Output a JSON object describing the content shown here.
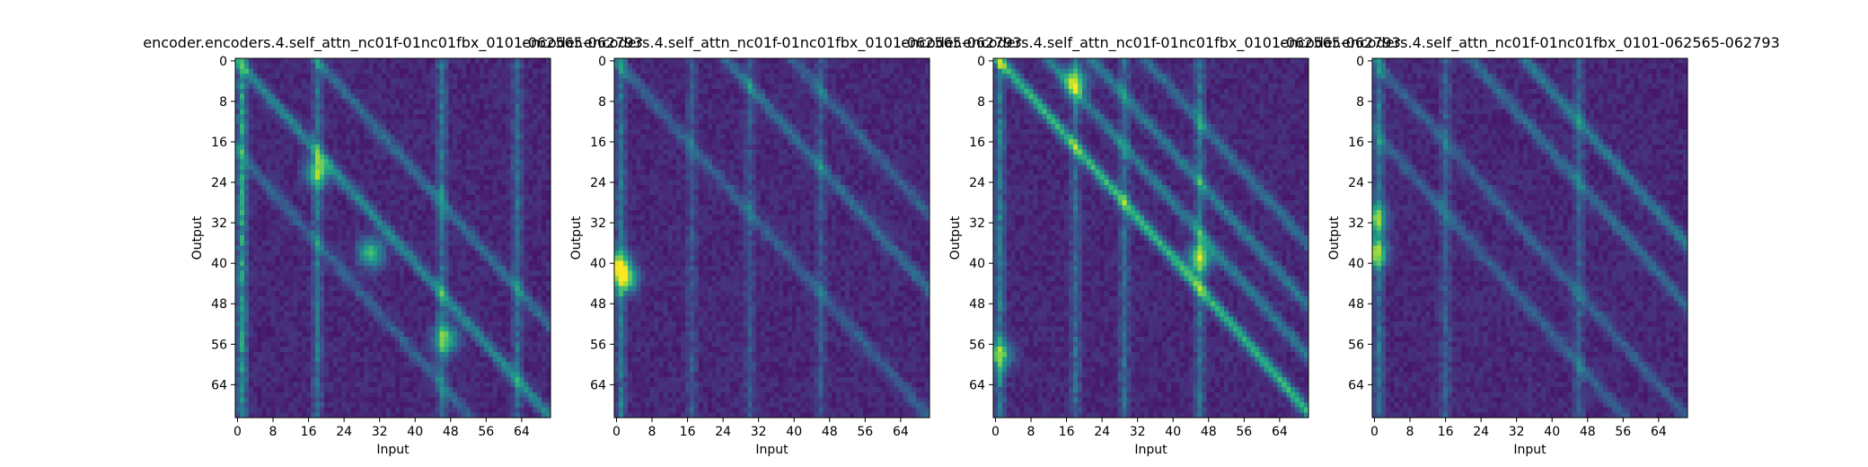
{
  "chart_data": [
    {
      "type": "heatmap",
      "title": "encoder.encoders.4.self_attn_nc01f-01nc01fbx_0101-062565-062793",
      "xlabel": "Input",
      "ylabel": "Output",
      "xticks": [
        0,
        8,
        16,
        24,
        32,
        40,
        48,
        56,
        64
      ],
      "yticks": [
        0,
        8,
        16,
        24,
        32,
        40,
        48,
        56,
        64
      ],
      "size": 71,
      "colormap": "viridis",
      "features": [
        {
          "kind": "diagonal",
          "offset": 0,
          "strength": 0.35
        },
        {
          "kind": "diagonal",
          "offset": 18,
          "strength": 0.25
        },
        {
          "kind": "diagonal",
          "offset": -18,
          "strength": 0.2
        },
        {
          "kind": "column",
          "index": 1,
          "strength": 0.55
        },
        {
          "kind": "column",
          "index": 18,
          "strength": 0.35
        },
        {
          "kind": "column",
          "index": 46,
          "strength": 0.35
        },
        {
          "kind": "column",
          "index": 63,
          "strength": 0.3
        },
        {
          "kind": "spot",
          "row": 38,
          "col": 30,
          "strength": 0.6
        },
        {
          "kind": "spot",
          "row": 55,
          "col": 47,
          "strength": 0.55
        },
        {
          "kind": "spot",
          "row": 22,
          "col": 18,
          "strength": 0.55
        }
      ]
    },
    {
      "type": "heatmap",
      "title": "encoder.encoders.4.self_attn_nc01f-01nc01fbx_0101-062565-062793",
      "xlabel": "Input",
      "ylabel": "Output",
      "xticks": [
        0,
        8,
        16,
        24,
        32,
        40,
        48,
        56,
        64
      ],
      "yticks": [
        0,
        8,
        16,
        24,
        32,
        40,
        48,
        56,
        64
      ],
      "size": 71,
      "colormap": "viridis",
      "features": [
        {
          "kind": "diagonal",
          "offset": 0,
          "strength": 0.2
        },
        {
          "kind": "diagonal",
          "offset": 25,
          "strength": 0.25
        },
        {
          "kind": "diagonal",
          "offset": 40,
          "strength": 0.2
        },
        {
          "kind": "column",
          "index": 1,
          "strength": 0.35
        },
        {
          "kind": "column",
          "index": 17,
          "strength": 0.2
        },
        {
          "kind": "column",
          "index": 30,
          "strength": 0.2
        },
        {
          "kind": "column",
          "index": 46,
          "strength": 0.2
        },
        {
          "kind": "spot",
          "row": 43,
          "col": 2,
          "strength": 0.7
        },
        {
          "kind": "spot",
          "row": 40,
          "col": 0,
          "strength": 0.55
        }
      ]
    },
    {
      "type": "heatmap",
      "title": "encoder.encoders.4.self_attn_nc01f-01nc01fbx_0101-062565-062793",
      "xlabel": "Input",
      "ylabel": "Output",
      "xticks": [
        0,
        8,
        16,
        24,
        32,
        40,
        48,
        56,
        64
      ],
      "yticks": [
        0,
        8,
        16,
        24,
        32,
        40,
        48,
        56,
        64
      ],
      "size": 71,
      "colormap": "viridis",
      "features": [
        {
          "kind": "diagonal",
          "offset": 1,
          "strength": 0.55
        },
        {
          "kind": "diagonal",
          "offset": 12,
          "strength": 0.3
        },
        {
          "kind": "diagonal",
          "offset": 22,
          "strength": 0.3
        },
        {
          "kind": "diagonal",
          "offset": 34,
          "strength": 0.25
        },
        {
          "kind": "column",
          "index": 1,
          "strength": 0.4
        },
        {
          "kind": "column",
          "index": 18,
          "strength": 0.3
        },
        {
          "kind": "column",
          "index": 29,
          "strength": 0.3
        },
        {
          "kind": "column",
          "index": 46,
          "strength": 0.35
        },
        {
          "kind": "spot",
          "row": 39,
          "col": 46,
          "strength": 0.6
        },
        {
          "kind": "spot",
          "row": 4,
          "col": 18,
          "strength": 0.55
        },
        {
          "kind": "spot",
          "row": 58,
          "col": 1,
          "strength": 0.5
        }
      ]
    },
    {
      "type": "heatmap",
      "title": "encoder.encoders.4.self_attn_nc01f-01nc01fbx_0101-062565-062793",
      "xlabel": "Input",
      "ylabel": "Output",
      "xticks": [
        0,
        8,
        16,
        24,
        32,
        40,
        48,
        56,
        64
      ],
      "yticks": [
        0,
        8,
        16,
        24,
        32,
        40,
        48,
        56,
        64
      ],
      "size": 71,
      "colormap": "viridis",
      "features": [
        {
          "kind": "diagonal",
          "offset": 0,
          "strength": 0.2
        },
        {
          "kind": "diagonal",
          "offset": 22,
          "strength": 0.25
        },
        {
          "kind": "diagonal",
          "offset": 34,
          "strength": 0.3
        },
        {
          "kind": "diagonal",
          "offset": -14,
          "strength": 0.2
        },
        {
          "kind": "column",
          "index": 1,
          "strength": 0.35
        },
        {
          "kind": "column",
          "index": 16,
          "strength": 0.25
        },
        {
          "kind": "column",
          "index": 46,
          "strength": 0.25
        },
        {
          "kind": "spot",
          "row": 38,
          "col": 0,
          "strength": 0.6
        },
        {
          "kind": "spot",
          "row": 31,
          "col": 0,
          "strength": 0.5
        }
      ]
    }
  ]
}
